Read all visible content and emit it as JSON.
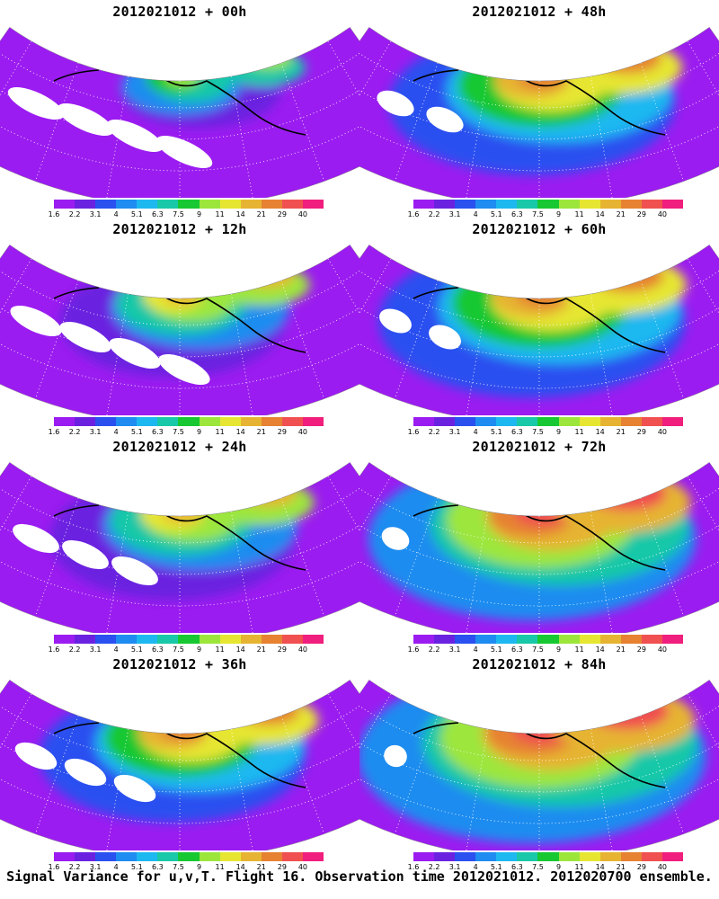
{
  "panels": [
    {
      "title": "2012021012 + 00h",
      "stage": 0
    },
    {
      "title": "2012021012 + 48h",
      "stage": 4
    },
    {
      "title": "2012021012 + 12h",
      "stage": 1
    },
    {
      "title": "2012021012 + 60h",
      "stage": 5
    },
    {
      "title": "2012021012 + 24h",
      "stage": 2
    },
    {
      "title": "2012021012 + 72h",
      "stage": 6
    },
    {
      "title": "2012021012 + 36h",
      "stage": 3
    },
    {
      "title": "2012021012 + 84h",
      "stage": 7
    }
  ],
  "colorbar": {
    "labels": [
      "1.6",
      "2.2",
      "3.1",
      "4",
      "5.1",
      "6.3",
      "7.5",
      "9",
      "11",
      "14",
      "21",
      "29",
      "40"
    ],
    "colors": [
      "#9b1cf0",
      "#6b22e0",
      "#2a50f0",
      "#1e8cf0",
      "#1eb8f0",
      "#19c8a8",
      "#17c832",
      "#9ce63c",
      "#e6e632",
      "#e6b432",
      "#e68232",
      "#f05050",
      "#f01e7d"
    ]
  },
  "caption": "Signal Variance for u,v,T. Flight 16. Observation time 2012021012. 2012020700 ensemble."
}
